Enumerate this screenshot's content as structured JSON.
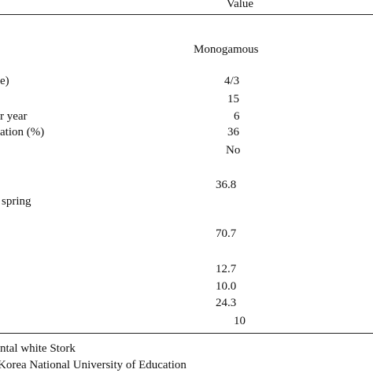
{
  "table": {
    "header": "Value",
    "subheader": "Monogamous",
    "rows": [
      {
        "label": "e)",
        "value": "4/3"
      },
      {
        "value": "15"
      },
      {
        "label": "r year",
        "value": "6"
      },
      {
        "label": "ation (%)",
        "value": "36"
      },
      {
        "value": "No"
      },
      {
        "value": "36.8"
      },
      {
        "label": "spring"
      },
      {
        "value": "70.7"
      },
      {
        "value": "12.7"
      },
      {
        "value": "10.0"
      },
      {
        "value": "24.3"
      },
      {
        "value": "10"
      }
    ]
  },
  "footnotes": [
    "ntal white Stork",
    "Korea National University of Education"
  ]
}
